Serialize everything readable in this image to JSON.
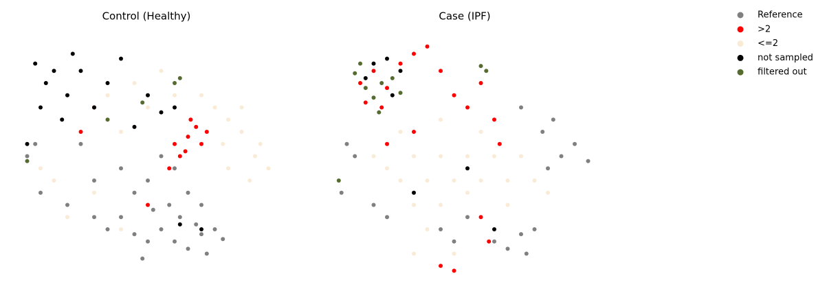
{
  "chart_data": [
    {
      "type": "scatter",
      "title": "Control (Healthy)",
      "xlim": [
        0,
        100
      ],
      "ylim": [
        0,
        100
      ],
      "series": [
        {
          "name": "Reference",
          "color": "#808080",
          "x": [
            60,
            65,
            70,
            72,
            75,
            68,
            55,
            50,
            45,
            62,
            58,
            40,
            35,
            30,
            20,
            10,
            5,
            8,
            45,
            50,
            40,
            55,
            60,
            78,
            48,
            52,
            30,
            25,
            65,
            70
          ],
          "y": [
            15,
            12,
            18,
            10,
            20,
            22,
            20,
            15,
            18,
            25,
            30,
            25,
            20,
            25,
            30,
            35,
            50,
            55,
            35,
            40,
            45,
            50,
            45,
            16,
            8,
            28,
            40,
            55,
            35,
            30
          ]
        },
        {
          "name": ">2",
          "color": "#ff0000",
          "x": [
            65,
            68,
            70,
            62,
            66,
            60,
            72,
            58,
            50,
            25,
            30,
            64
          ],
          "y": [
            58,
            62,
            55,
            50,
            65,
            55,
            60,
            45,
            30,
            60,
            70,
            52
          ]
        },
        {
          "name": "<=2",
          "color": "#faebd7",
          "x": [
            80,
            85,
            90,
            95,
            88,
            78,
            75,
            70,
            85,
            92,
            50,
            45,
            40,
            15,
            10,
            30,
            40,
            20,
            80,
            55,
            60,
            35
          ],
          "y": [
            65,
            60,
            50,
            45,
            40,
            55,
            70,
            75,
            70,
            55,
            70,
            80,
            60,
            40,
            45,
            35,
            20,
            25,
            45,
            85,
            75,
            75
          ]
        },
        {
          "name": "not sampled",
          "color": "#000000",
          "x": [
            8,
            12,
            15,
            20,
            25,
            30,
            18,
            10,
            35,
            40,
            50,
            55,
            60,
            5,
            22,
            45,
            70,
            62
          ],
          "y": [
            88,
            80,
            85,
            75,
            85,
            70,
            65,
            70,
            80,
            90,
            75,
            68,
            70,
            55,
            92,
            62,
            20,
            22
          ]
        },
        {
          "name": "filtered out",
          "color": "#556b2f",
          "x": [
            60,
            48,
            5,
            35,
            62
          ],
          "y": [
            80,
            72,
            48,
            65,
            82
          ]
        }
      ]
    },
    {
      "type": "scatter",
      "title": "Case (IPF)",
      "xlim": [
        0,
        100
      ],
      "ylim": [
        0,
        100
      ],
      "series": [
        {
          "name": "Reference",
          "color": "#808080",
          "x": [
            60,
            65,
            70,
            75,
            72,
            80,
            85,
            90,
            95,
            78,
            5,
            8,
            15,
            20,
            40,
            45,
            50,
            70,
            82,
            3
          ],
          "y": [
            15,
            12,
            18,
            20,
            10,
            45,
            50,
            55,
            48,
            60,
            55,
            50,
            30,
            25,
            20,
            15,
            25,
            70,
            65,
            35
          ]
        },
        {
          "name": ">2",
          "color": "#ff0000",
          "x": [
            10,
            15,
            20,
            25,
            18,
            30,
            35,
            40,
            45,
            50,
            55,
            30,
            20,
            60,
            58,
            40,
            45,
            55,
            62,
            12
          ],
          "y": [
            80,
            85,
            78,
            88,
            70,
            92,
            95,
            85,
            75,
            70,
            80,
            60,
            55,
            65,
            15,
            5,
            3,
            25,
            55,
            72
          ]
        },
        {
          "name": "<=2",
          "color": "#faebd7",
          "x": [
            30,
            40,
            50,
            60,
            70,
            25,
            35,
            45,
            55,
            65,
            75,
            30,
            40,
            50,
            35,
            30,
            45,
            20,
            80,
            55,
            40,
            25,
            65,
            15
          ],
          "y": [
            50,
            50,
            50,
            50,
            50,
            40,
            40,
            40,
            40,
            40,
            40,
            30,
            30,
            35,
            20,
            10,
            10,
            45,
            35,
            60,
            65,
            60,
            30,
            50
          ]
        },
        {
          "name": "not sampled",
          "color": "#000000",
          "x": [
            15,
            20,
            25,
            12,
            22,
            50,
            60,
            30
          ],
          "y": [
            88,
            90,
            85,
            82,
            75,
            45,
            20,
            35
          ]
        },
        {
          "name": "filtered out",
          "color": "#556b2f",
          "x": [
            8,
            12,
            15,
            18,
            22,
            10,
            17,
            25,
            55,
            57,
            2
          ],
          "y": [
            84,
            78,
            74,
            80,
            82,
            88,
            68,
            76,
            87,
            85,
            40
          ]
        }
      ]
    }
  ]
}
